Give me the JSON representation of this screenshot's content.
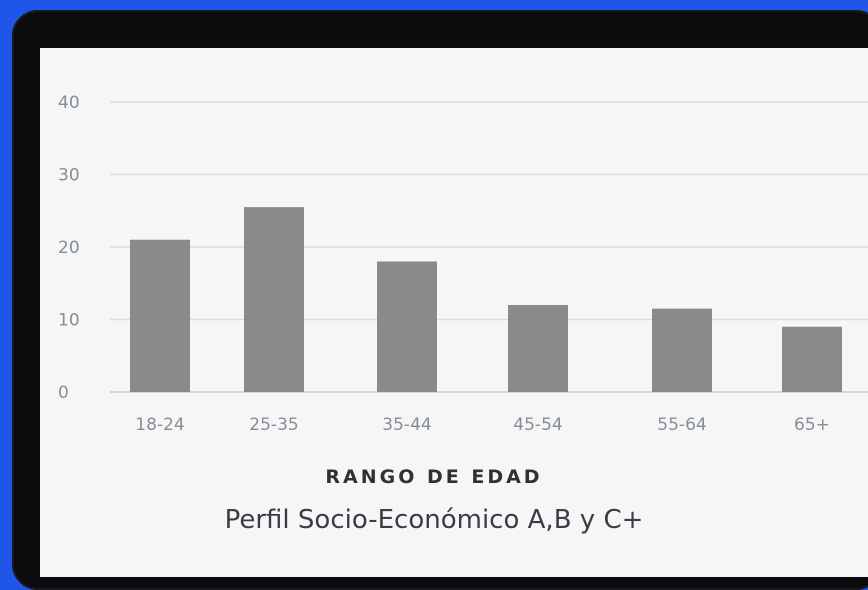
{
  "chart_data": {
    "type": "bar",
    "categories": [
      "18-24",
      "25-35",
      "35-44",
      "45-54",
      "55-64",
      "65+"
    ],
    "values": [
      21,
      25.5,
      18,
      12,
      11.5,
      9
    ],
    "title": "Perfil Socio-Económico A,B y C+",
    "xlabel": "RANGO DE EDAD",
    "ylabel": "",
    "ylim": [
      0,
      40
    ],
    "yticks": [
      "0",
      "10",
      "20",
      "30",
      "40"
    ],
    "grid": true,
    "bar_color": "#8a8a8a"
  },
  "colors": {
    "background": "#1f56e8",
    "frame": "#0b0b0d",
    "screen": "#f4f6f8",
    "grid": "#d9dcdf"
  }
}
